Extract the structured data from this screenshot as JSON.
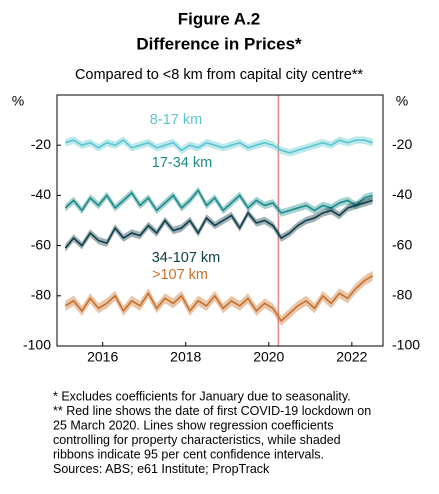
{
  "chart_data": {
    "type": "line",
    "title": "Figure A.2",
    "subtitle": "Difference in Prices*",
    "description": "Compared to <8 km from capital city centre**",
    "y_label": "%",
    "x": [
      2015.1,
      2015.3,
      2015.5,
      2015.7,
      2015.9,
      2016.1,
      2016.3,
      2016.5,
      2016.7,
      2016.9,
      2017.1,
      2017.3,
      2017.5,
      2017.7,
      2017.9,
      2018.1,
      2018.3,
      2018.5,
      2018.7,
      2018.9,
      2019.1,
      2019.3,
      2019.5,
      2019.7,
      2019.9,
      2020.1,
      2020.3,
      2020.5,
      2020.7,
      2020.9,
      2021.1,
      2021.3,
      2021.5,
      2021.7,
      2021.9,
      2022.1,
      2022.3,
      2022.5
    ],
    "series": [
      {
        "name": "8-17 km",
        "color": "#5bc6d0",
        "ci": 1.5,
        "values": [
          -19,
          -18,
          -20,
          -19,
          -21,
          -19,
          -20,
          -18,
          -21,
          -20,
          -19,
          -21,
          -20,
          -19,
          -22,
          -20,
          -21,
          -19,
          -20,
          -21,
          -20,
          -19,
          -21,
          -20,
          -19,
          -20,
          -22,
          -23,
          -22,
          -21,
          -20,
          -19,
          -20,
          -18,
          -19,
          -18,
          -18,
          -19
        ]
      },
      {
        "name": "17-34 km",
        "color": "#1b8b8b",
        "ci": 1.5,
        "values": [
          -45,
          -42,
          -46,
          -41,
          -44,
          -40,
          -45,
          -42,
          -39,
          -44,
          -41,
          -46,
          -43,
          -40,
          -45,
          -42,
          -38,
          -44,
          -41,
          -46,
          -43,
          -40,
          -45,
          -42,
          -44,
          -43,
          -47,
          -46,
          -45,
          -44,
          -46,
          -44,
          -45,
          -43,
          -42,
          -44,
          -41,
          -40
        ]
      },
      {
        "name": "34-107 km",
        "color": "#0f3d48",
        "ci": 1.5,
        "values": [
          -61,
          -57,
          -60,
          -55,
          -58,
          -59,
          -53,
          -57,
          -55,
          -56,
          -52,
          -55,
          -50,
          -54,
          -53,
          -50,
          -55,
          -49,
          -52,
          -50,
          -48,
          -53,
          -47,
          -51,
          -50,
          -52,
          -57,
          -55,
          -52,
          -50,
          -49,
          -47,
          -46,
          -48,
          -45,
          -44,
          -43,
          -42
        ]
      },
      {
        "name": ">107 km",
        "color": "#c8702a",
        "ci": 2,
        "values": [
          -84,
          -82,
          -86,
          -81,
          -85,
          -83,
          -80,
          -86,
          -82,
          -84,
          -79,
          -85,
          -81,
          -83,
          -80,
          -86,
          -82,
          -84,
          -80,
          -85,
          -82,
          -84,
          -81,
          -86,
          -83,
          -85,
          -90,
          -87,
          -84,
          -82,
          -85,
          -80,
          -83,
          -79,
          -81,
          -77,
          -74,
          -72
        ]
      }
    ],
    "xlim": [
      2014.9,
      2022.75
    ],
    "xticks": [
      2016,
      2018,
      2020,
      2022
    ],
    "ylim": [
      -100,
      0
    ],
    "yticks": [
      -100,
      -80,
      -60,
      -40,
      -20
    ],
    "vline": {
      "x": 2020.23,
      "color": "#e48a8a"
    },
    "notes": [
      "* Excludes coefficients for January due to seasonality.",
      "** Red line shows the date of first COVID-19 lockdown on",
      "25 March 2020. Lines show regression coefficients",
      "controlling for property characteristics, while shaded",
      "ribbons indicate 95 per cent confidence intervals.",
      "Sources: ABS; e61 Institute; PropTrack"
    ]
  }
}
